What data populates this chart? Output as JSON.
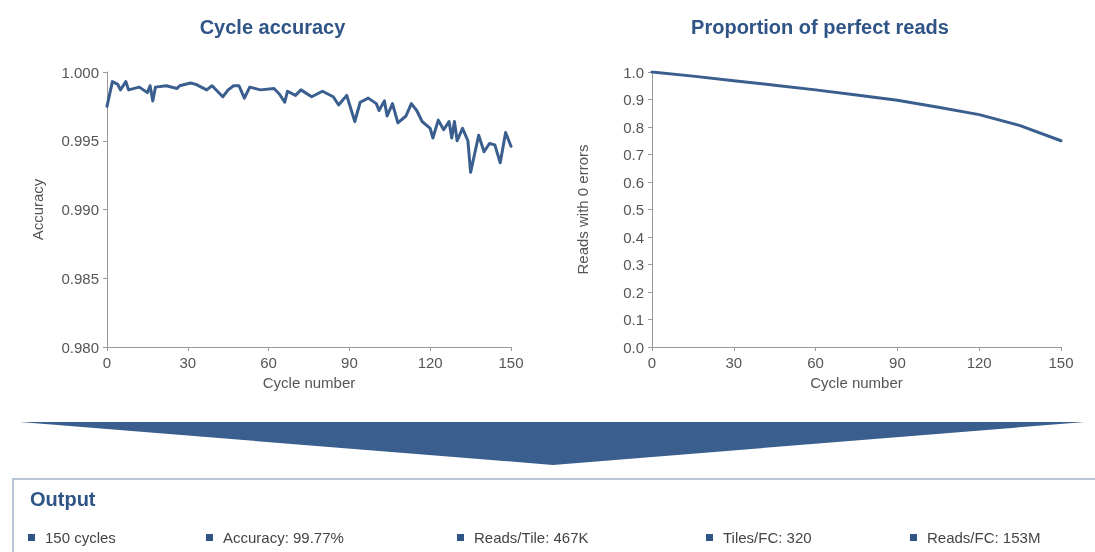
{
  "chart_data": [
    {
      "type": "line",
      "title": "Cycle accuracy",
      "xlabel": "Cycle number",
      "ylabel": "Accuracy",
      "marker": "none",
      "line_style": "solid",
      "xlim": [
        0,
        150
      ],
      "xticks": [
        0,
        30,
        60,
        90,
        120,
        150
      ],
      "ylim": [
        0.98,
        1.0
      ],
      "yticks": [
        {
          "value": 0.98,
          "label": "0.980"
        },
        {
          "value": 0.985,
          "label": "0.985"
        },
        {
          "value": 0.99,
          "label": "0.990"
        },
        {
          "value": 0.995,
          "label": "0.995"
        },
        {
          "value": 1.0,
          "label": "1.000"
        }
      ],
      "x": [
        0,
        2,
        4,
        5,
        7,
        8,
        12,
        15,
        16,
        17,
        18,
        22,
        26,
        27,
        31,
        33,
        37,
        39,
        43,
        45,
        47,
        49,
        51,
        53,
        57,
        62,
        64,
        66,
        67,
        70,
        72,
        76,
        80,
        84,
        86,
        89,
        92,
        94,
        97,
        100,
        101,
        103,
        104,
        106,
        108,
        111,
        113,
        115,
        117,
        120,
        121,
        123,
        125,
        127,
        128,
        129,
        130,
        132,
        134,
        135,
        138,
        140,
        142,
        144,
        146,
        148,
        150
      ],
      "series": [
        {
          "color": "#3a5f8f",
          "values": [
            0.9975,
            0.9993,
            0.9991,
            0.9987,
            0.9993,
            0.9987,
            0.9989,
            0.9985,
            0.999,
            0.9979,
            0.9989,
            0.999,
            0.9988,
            0.999,
            0.9992,
            0.9991,
            0.9987,
            0.999,
            0.9982,
            0.9987,
            0.999,
            0.999,
            0.9981,
            0.9989,
            0.9987,
            0.9988,
            0.9984,
            0.9978,
            0.9986,
            0.9983,
            0.9987,
            0.9982,
            0.9986,
            0.9982,
            0.9976,
            0.9983,
            0.9964,
            0.9978,
            0.9981,
            0.9977,
            0.9972,
            0.9979,
            0.9968,
            0.9977,
            0.9963,
            0.9968,
            0.9977,
            0.9972,
            0.9964,
            0.9959,
            0.9952,
            0.9965,
            0.9958,
            0.9964,
            0.9952,
            0.9964,
            0.995,
            0.9959,
            0.995,
            0.9927,
            0.9954,
            0.9942,
            0.9948,
            0.9947,
            0.9934,
            0.9956,
            0.9946
          ]
        }
      ]
    },
    {
      "type": "line",
      "title": "Proportion of perfect reads",
      "xlabel": "Cycle number",
      "ylabel": "Reads with 0 errors",
      "marker": "none",
      "line_style": "solid",
      "xlim": [
        0,
        150
      ],
      "xticks": [
        0,
        30,
        60,
        90,
        120,
        150
      ],
      "ylim": [
        0,
        1
      ],
      "yticks": [
        {
          "value": 0,
          "label": "0.0"
        },
        0.1,
        0.2,
        0.3,
        0.4,
        0.5,
        0.6,
        0.7,
        0.8,
        0.9,
        {
          "value": 1,
          "label": "1.0"
        }
      ],
      "x": [
        0,
        15,
        30,
        45,
        60,
        75,
        90,
        105,
        120,
        135,
        150
      ],
      "series": [
        {
          "color": "#3a5f8f",
          "values": [
            1.0,
            0.985,
            0.968,
            0.952,
            0.935,
            0.916,
            0.897,
            0.872,
            0.845,
            0.805,
            0.75
          ]
        }
      ]
    },
    {
      "type": "other",
      "title": "Output",
      "annotations": [
        "150 cycles",
        "Accuracy: 99.77%",
        "Reads/Tile: 467K",
        "Tiles/FC: 320",
        "Reads/FC: 153M"
      ]
    }
  ]
}
